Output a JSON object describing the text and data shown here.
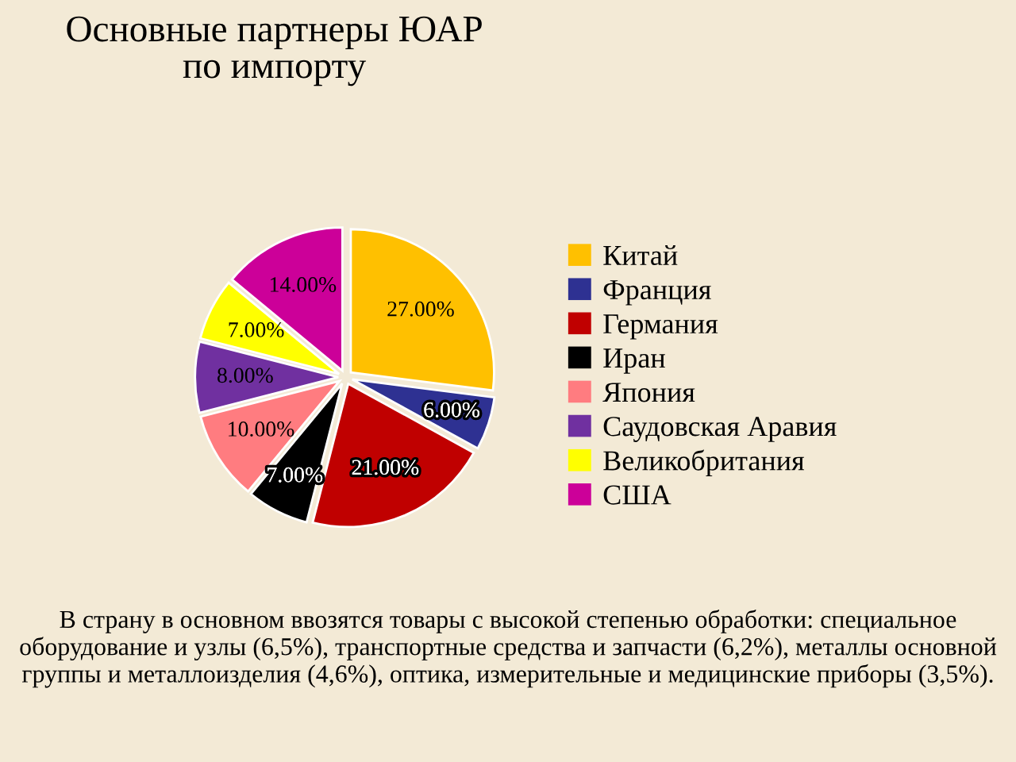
{
  "chart_data": {
    "type": "pie",
    "title": "Основные партнеры ЮАР\nпо импорту",
    "categories": [
      "Китай",
      "Франция",
      "Германия",
      "Иран",
      "Япония",
      "Саудовская Аравия",
      "Великобритания",
      "США"
    ],
    "values": [
      27,
      6,
      21,
      7,
      10,
      8,
      7,
      14
    ],
    "colors": [
      "#ffc000",
      "#2e3192",
      "#c00000",
      "#000000",
      "#ff7c80",
      "#7030a0",
      "#ffff00",
      "#cc0099"
    ],
    "value_labels": [
      "27.00%",
      "6.00%",
      "21.00%",
      "7.00%",
      "10.00%",
      "8.00%",
      "7.00%",
      "14.00%"
    ],
    "legend": "right",
    "annotations": [
      "В страну в основном ввозятся товары с высокой степенью обработки: специальное оборудование и узлы (6,5%), транспортные средства и запчасти (6,2%), металлы основной группы и металлоизделия (4,6%), оптика, измерительные и медицинские приборы (3,5%)."
    ]
  }
}
